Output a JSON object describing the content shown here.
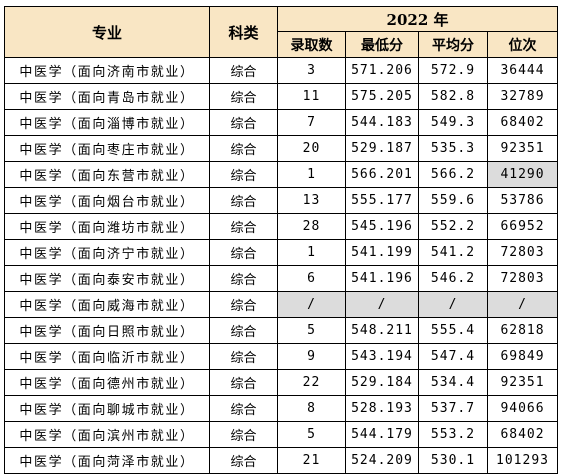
{
  "table": {
    "headers": {
      "major": "专业",
      "category": "科类",
      "year": "2022 年",
      "admitted": "录取数",
      "min_score": "最低分",
      "avg_score": "平均分",
      "rank": "位次"
    },
    "rows": [
      {
        "major": "中医学（面向济南市就业）",
        "category": "综合",
        "admitted": "3",
        "min_score": "571.206",
        "avg_score": "572.9",
        "rank": "36444",
        "rank_gray": false,
        "all_gray": false
      },
      {
        "major": "中医学（面向青岛市就业）",
        "category": "综合",
        "admitted": "11",
        "min_score": "575.205",
        "avg_score": "582.8",
        "rank": "32789",
        "rank_gray": false,
        "all_gray": false
      },
      {
        "major": "中医学（面向淄博市就业）",
        "category": "综合",
        "admitted": "7",
        "min_score": "544.183",
        "avg_score": "549.3",
        "rank": "68402",
        "rank_gray": false,
        "all_gray": false
      },
      {
        "major": "中医学（面向枣庄市就业）",
        "category": "综合",
        "admitted": "20",
        "min_score": "529.187",
        "avg_score": "535.3",
        "rank": "92351",
        "rank_gray": false,
        "all_gray": false
      },
      {
        "major": "中医学（面向东营市就业）",
        "category": "综合",
        "admitted": "1",
        "min_score": "566.201",
        "avg_score": "566.2",
        "rank": "41290",
        "rank_gray": true,
        "all_gray": false
      },
      {
        "major": "中医学（面向烟台市就业）",
        "category": "综合",
        "admitted": "13",
        "min_score": "555.177",
        "avg_score": "559.6",
        "rank": "53786",
        "rank_gray": false,
        "all_gray": false
      },
      {
        "major": "中医学（面向潍坊市就业）",
        "category": "综合",
        "admitted": "28",
        "min_score": "545.196",
        "avg_score": "552.2",
        "rank": "66952",
        "rank_gray": false,
        "all_gray": false
      },
      {
        "major": "中医学（面向济宁市就业）",
        "category": "综合",
        "admitted": "1",
        "min_score": "541.199",
        "avg_score": "541.2",
        "rank": "72803",
        "rank_gray": false,
        "all_gray": false
      },
      {
        "major": "中医学（面向泰安市就业）",
        "category": "综合",
        "admitted": "6",
        "min_score": "541.196",
        "avg_score": "546.2",
        "rank": "72803",
        "rank_gray": false,
        "all_gray": false
      },
      {
        "major": "中医学（面向威海市就业）",
        "category": "综合",
        "admitted": "/",
        "min_score": "/",
        "avg_score": "/",
        "rank": "/",
        "rank_gray": false,
        "all_gray": true
      },
      {
        "major": "中医学（面向日照市就业）",
        "category": "综合",
        "admitted": "5",
        "min_score": "548.211",
        "avg_score": "555.4",
        "rank": "62818",
        "rank_gray": false,
        "all_gray": false
      },
      {
        "major": "中医学（面向临沂市就业）",
        "category": "综合",
        "admitted": "9",
        "min_score": "543.194",
        "avg_score": "547.4",
        "rank": "69849",
        "rank_gray": false,
        "all_gray": false
      },
      {
        "major": "中医学（面向德州市就业）",
        "category": "综合",
        "admitted": "22",
        "min_score": "529.184",
        "avg_score": "534.4",
        "rank": "92351",
        "rank_gray": false,
        "all_gray": false
      },
      {
        "major": "中医学（面向聊城市就业）",
        "category": "综合",
        "admitted": "8",
        "min_score": "528.193",
        "avg_score": "537.7",
        "rank": "94066",
        "rank_gray": false,
        "all_gray": false
      },
      {
        "major": "中医学（面向滨州市就业）",
        "category": "综合",
        "admitted": "5",
        "min_score": "544.179",
        "avg_score": "553.2",
        "rank": "68402",
        "rank_gray": false,
        "all_gray": false
      },
      {
        "major": "中医学（面向菏泽市就业）",
        "category": "综合",
        "admitted": "21",
        "min_score": "524.209",
        "avg_score": "530.1",
        "rank": "101293",
        "rank_gray": false,
        "all_gray": false
      }
    ],
    "colors": {
      "header_bg": "#f9e6c4",
      "gray_cell": "#dcdcdc",
      "border": "#000000"
    }
  }
}
